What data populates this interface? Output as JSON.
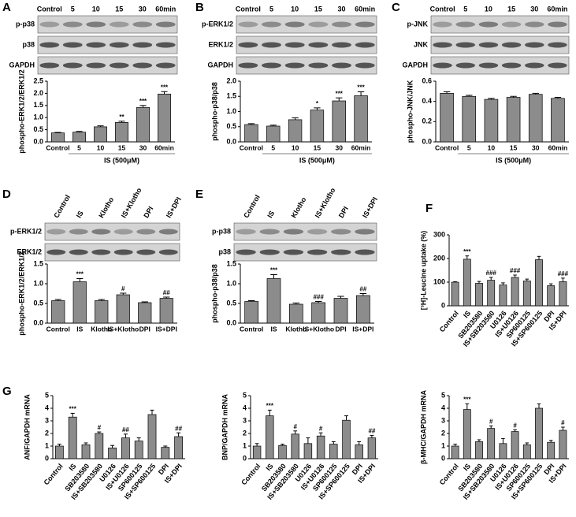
{
  "chart_data": [
    {
      "type": "bar",
      "panel": "A",
      "blot": {
        "lanes": [
          "Control",
          "5",
          "10",
          "15",
          "30",
          "60min"
        ],
        "rows": [
          "p-p38",
          "p38",
          "GAPDH"
        ]
      },
      "categories": [
        "Control",
        "5",
        "10",
        "15",
        "30",
        "60min"
      ],
      "values": [
        0.37,
        0.4,
        0.62,
        0.8,
        1.42,
        1.97
      ],
      "errors": [
        0.02,
        0.03,
        0.04,
        0.05,
        0.08,
        0.1
      ],
      "significance": [
        null,
        null,
        null,
        "**",
        "***",
        "***"
      ],
      "y_label": "phospho-ERK1/2/ERK1/2",
      "x_label": "IS (500μM)",
      "color": "#8c8c8c",
      "ylim": [
        0,
        2.5
      ],
      "yticks": [
        {
          "value": 0,
          "label": "0.0"
        },
        {
          "value": 0.5,
          "label": "0.5"
        },
        {
          "value": 1,
          "label": "1.0"
        },
        {
          "value": 1.5,
          "label": "1.5"
        },
        {
          "value": 2,
          "label": "2.0"
        },
        {
          "value": 2.5,
          "label": "2.5"
        }
      ]
    },
    {
      "type": "bar",
      "panel": "B",
      "blot": {
        "lanes": [
          "Control",
          "5",
          "10",
          "15",
          "30",
          "60min"
        ],
        "rows": [
          "p-ERK1/2",
          "ERK1/2",
          "GAPDH"
        ]
      },
      "categories": [
        "Control",
        "5",
        "10",
        "15",
        "30",
        "60min"
      ],
      "values": [
        0.57,
        0.52,
        0.73,
        1.05,
        1.35,
        1.52
      ],
      "errors": [
        0.03,
        0.03,
        0.06,
        0.07,
        0.1,
        0.13
      ],
      "significance": [
        null,
        null,
        null,
        "*",
        "***",
        "***"
      ],
      "y_label": "phospho-p38/p38",
      "x_label": "IS (500μM)",
      "color": "#8c8c8c",
      "ylim": [
        0,
        2
      ],
      "yticks": [
        {
          "value": 0,
          "label": "0.0"
        },
        {
          "value": 0.5,
          "label": "0.5"
        },
        {
          "value": 1,
          "label": "1.0"
        },
        {
          "value": 1.5,
          "label": "1.5"
        },
        {
          "value": 2,
          "label": "2.0"
        }
      ]
    },
    {
      "type": "bar",
      "panel": "C",
      "blot": {
        "lanes": [
          "Control",
          "5",
          "10",
          "15",
          "30",
          "60min"
        ],
        "rows": [
          "p-JNK",
          "JNK",
          "GAPDH"
        ]
      },
      "categories": [
        "Control",
        "5",
        "10",
        "15",
        "30",
        "60min"
      ],
      "values": [
        0.48,
        0.45,
        0.42,
        0.44,
        0.47,
        0.43
      ],
      "errors": [
        0.015,
        0.01,
        0.01,
        0.01,
        0.01,
        0.01
      ],
      "significance": [
        null,
        null,
        null,
        null,
        null,
        null
      ],
      "y_label": "phospho-JNK/JNK",
      "x_label": "IS (500μM)",
      "color": "#8c8c8c",
      "ylim": [
        0,
        0.6
      ],
      "yticks": [
        {
          "value": 0,
          "label": "0.0"
        },
        {
          "value": 0.2,
          "label": "0.2"
        },
        {
          "value": 0.4,
          "label": "0.4"
        },
        {
          "value": 0.6,
          "label": "0.6"
        }
      ]
    },
    {
      "type": "bar",
      "panel": "D",
      "blot": {
        "lanes": [
          "Control",
          "IS",
          "Klotho",
          "IS+Klotho",
          "DPI",
          "IS+DPI"
        ],
        "rows": [
          "p-ERK1/2",
          "ERK1/2"
        ]
      },
      "categories": [
        "Control",
        "IS",
        "Klotho",
        "IS+Klotho",
        "DPI",
        "IS+DPI"
      ],
      "values": [
        0.57,
        1.05,
        0.57,
        0.72,
        0.52,
        0.63
      ],
      "errors": [
        0.03,
        0.08,
        0.03,
        0.04,
        0.02,
        0.03
      ],
      "significance": [
        null,
        "***",
        null,
        "#",
        null,
        "##"
      ],
      "y_label": "phospho-ERK1/2/ERK1/2",
      "color": "#8c8c8c",
      "ylim": [
        0,
        1.5
      ],
      "yticks": [
        {
          "value": 0,
          "label": "0.0"
        },
        {
          "value": 0.5,
          "label": "0.5"
        },
        {
          "value": 1,
          "label": "1.0"
        },
        {
          "value": 1.5,
          "label": "1.5"
        }
      ]
    },
    {
      "type": "bar",
      "panel": "E",
      "blot": {
        "lanes": [
          "Control",
          "IS",
          "Klotho",
          "IS+Klotho",
          "DPI",
          "IS+DPI"
        ],
        "rows": [
          "p-p38",
          "p38"
        ]
      },
      "categories": [
        "Control",
        "IS",
        "Klotho",
        "IS+Klotho",
        "DPI",
        "IS+DPI"
      ],
      "values": [
        0.55,
        1.13,
        0.48,
        0.52,
        0.63,
        0.7
      ],
      "errors": [
        0.02,
        0.1,
        0.03,
        0.03,
        0.05,
        0.05
      ],
      "significance": [
        null,
        "***",
        null,
        "###",
        null,
        "##"
      ],
      "y_label": "phospho-p38/p38",
      "color": "#8c8c8c",
      "ylim": [
        0,
        1.5
      ],
      "yticks": [
        {
          "value": 0,
          "label": "0.0"
        },
        {
          "value": 0.5,
          "label": "0.5"
        },
        {
          "value": 1,
          "label": "1.0"
        },
        {
          "value": 1.5,
          "label": "1.5"
        }
      ]
    },
    {
      "type": "bar",
      "panel": "F",
      "categories": [
        "Control",
        "IS",
        "SB203580",
        "IS+SB203580",
        "U0126",
        "IS+U0126",
        "SP600125",
        "IS+SP600125",
        "DPI",
        "IS+DPI"
      ],
      "values": [
        100,
        197,
        95,
        108,
        88,
        120,
        105,
        195,
        85,
        102
      ],
      "errors": [
        2,
        14,
        8,
        12,
        9,
        10,
        8,
        14,
        8,
        15
      ],
      "significance": [
        null,
        "***",
        null,
        "###",
        null,
        "###",
        null,
        null,
        null,
        "###"
      ],
      "y_label": "[³H]-Leucine uptake (%)",
      "color": "#8c8c8c",
      "ylim": [
        0,
        300
      ],
      "yticks": [
        0,
        100,
        200,
        300
      ]
    },
    {
      "type": "bar",
      "panel": "G",
      "categories": [
        "Control",
        "IS",
        "SB203580",
        "IS+SB203580",
        "U0126",
        "IS+U0126",
        "SP600125",
        "IS+SP600125",
        "DPI",
        "IS+DPI"
      ],
      "values": [
        1.0,
        3.3,
        1.1,
        2.0,
        0.85,
        1.65,
        1.4,
        3.5,
        0.9,
        1.75
      ],
      "errors": [
        0.15,
        0.3,
        0.15,
        0.12,
        0.2,
        0.3,
        0.25,
        0.35,
        0.1,
        0.3
      ],
      "significance": [
        null,
        "***",
        null,
        "#",
        null,
        "##",
        null,
        null,
        null,
        "##"
      ],
      "y_label": "ANF/GAPDH mRNA",
      "color": "#8c8c8c",
      "ylim": [
        0,
        5
      ],
      "yticks": [
        0,
        1,
        2,
        3,
        4,
        5
      ]
    },
    {
      "type": "bar",
      "categories": [
        "Control",
        "IS",
        "SB203580",
        "IS+SB203580",
        "U0126",
        "IS+U0126",
        "SP600125",
        "IS+SP600125",
        "DPI",
        "IS+DPI"
      ],
      "values": [
        1.0,
        3.4,
        1.05,
        1.95,
        1.2,
        1.8,
        1.15,
        3.05,
        1.1,
        1.65
      ],
      "errors": [
        0.2,
        0.45,
        0.1,
        0.25,
        0.45,
        0.25,
        0.2,
        0.35,
        0.25,
        0.2
      ],
      "significance": [
        null,
        "***",
        null,
        "#",
        null,
        "#",
        null,
        null,
        null,
        "##"
      ],
      "y_label": "BNP/GAPDH mRNA",
      "color": "#8c8c8c",
      "ylim": [
        0,
        5
      ],
      "yticks": [
        0,
        1,
        2,
        3,
        4,
        5
      ]
    },
    {
      "type": "bar",
      "categories": [
        "Control",
        "IS",
        "SB203580",
        "IS+SB203580",
        "U0126",
        "IS+U0126",
        "SP600125",
        "IS+SP600125",
        "DPI",
        "IS+DPI"
      ],
      "values": [
        1.0,
        3.9,
        1.35,
        2.4,
        1.2,
        2.15,
        1.1,
        4.0,
        1.3,
        2.25
      ],
      "errors": [
        0.15,
        0.45,
        0.15,
        0.2,
        0.4,
        0.15,
        0.15,
        0.35,
        0.15,
        0.25
      ],
      "significance": [
        null,
        "***",
        null,
        "#",
        null,
        "#",
        null,
        null,
        null,
        "#"
      ],
      "y_label": "β-MHC/GAPDH mRNA",
      "color": "#8c8c8c",
      "ylim": [
        0,
        5
      ],
      "yticks": [
        0,
        1,
        2,
        3,
        4,
        5
      ]
    }
  ]
}
